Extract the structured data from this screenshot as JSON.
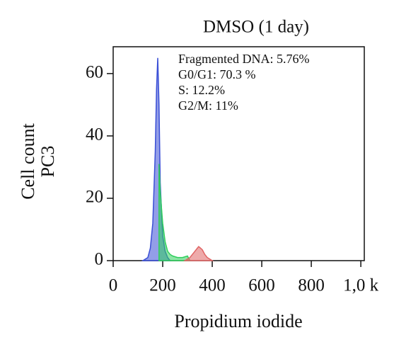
{
  "chart_data": {
    "type": "area",
    "title": "DMSO (1 day)",
    "xlabel": "Propidium iodide",
    "ylabel": [
      "Cell count",
      "PC3"
    ],
    "annotations": [
      "Fragmented DNA: 5.76%",
      "G0/G1: 70.3 %",
      "S: 12.2%",
      "G2/M: 11%"
    ],
    "xlim": [
      0,
      1014
    ],
    "ylim": [
      0,
      68.6
    ],
    "xticks": [
      0,
      200,
      400,
      600,
      800,
      {
        "value": 1000,
        "label": "1,0 k"
      }
    ],
    "yticks": [
      0,
      20,
      40,
      60
    ],
    "series": [
      {
        "name": "G0/G1",
        "color": "#3a4fd6",
        "x": [
          120,
          140,
          150,
          160,
          170,
          175,
          180,
          185,
          190,
          200,
          210,
          220,
          230
        ],
        "values": [
          0,
          1,
          4,
          12,
          35,
          55,
          65,
          50,
          25,
          8,
          3,
          1,
          0
        ]
      },
      {
        "name": "S",
        "color": "#2fcf5c",
        "x": [
          185,
          185,
          190,
          200,
          210,
          220,
          230,
          240,
          260,
          280,
          300,
          310
        ],
        "values": [
          0,
          31,
          22,
          12,
          6,
          3,
          2,
          1.5,
          1,
          1,
          1.5,
          0
        ]
      },
      {
        "name": "G2/M",
        "color": "#e06464",
        "x": [
          290,
          310,
          320,
          330,
          340,
          345,
          350,
          360,
          370,
          380,
          390,
          400
        ],
        "values": [
          0,
          1,
          2,
          3,
          4,
          4.5,
          4.2,
          3.5,
          2,
          1,
          0.5,
          0
        ]
      }
    ]
  }
}
